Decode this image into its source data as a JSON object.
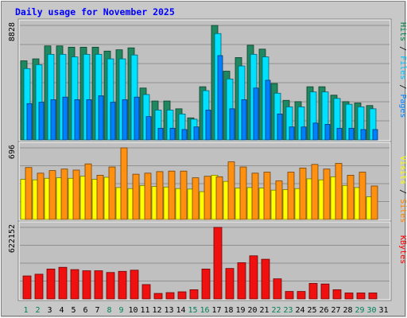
{
  "chart_data": {
    "type": "bar",
    "title": "Daily usage for November 2025",
    "categories": [
      "1",
      "2",
      "3",
      "4",
      "5",
      "6",
      "7",
      "8",
      "9",
      "10",
      "11",
      "12",
      "13",
      "14",
      "15",
      "16",
      "17",
      "18",
      "19",
      "20",
      "21",
      "22",
      "23",
      "24",
      "25",
      "26",
      "27",
      "28",
      "29",
      "30",
      "31"
    ],
    "weekend_days": [
      "1",
      "2",
      "8",
      "9",
      "15",
      "16",
      "22",
      "23",
      "29",
      "30"
    ],
    "panels": [
      {
        "id": "top",
        "max_label": "8828",
        "ylim": [
          0,
          8828
        ],
        "grid": true,
        "legend": [
          {
            "name": "Pages",
            "color": "#0080ff"
          },
          {
            "name": "Files",
            "color": "#00c0ff"
          },
          {
            "name": "Hits",
            "color": "#008040"
          }
        ],
        "series": [
          {
            "name": "Hits",
            "color": "#208860",
            "values": [
              6100,
              6250,
              7250,
              7250,
              7150,
              7150,
              7150,
              6850,
              6950,
              7100,
              4000,
              3000,
              3000,
              2400,
              1700,
              4100,
              8828,
              5300,
              6350,
              7300,
              7000,
              4350,
              3050,
              2950,
              4100,
              4100,
              3450,
              2950,
              2850,
              2650,
              null
            ]
          },
          {
            "name": "Files",
            "color": "#00e0ff",
            "values": [
              5500,
              5800,
              6600,
              6600,
              6400,
              6600,
              6600,
              6250,
              6250,
              6550,
              3500,
              2300,
              2300,
              2000,
              1600,
              3800,
              8200,
              4700,
              5700,
              6600,
              6400,
              3600,
              2550,
              2550,
              3700,
              3700,
              3200,
              2750,
              2550,
              2400,
              null
            ]
          },
          {
            "name": "Pages",
            "color": "#0080ff",
            "values": [
              2800,
              2900,
              3100,
              3300,
              3100,
              3100,
              3400,
              2900,
              3100,
              3300,
              1800,
              900,
              900,
              800,
              1000,
              2300,
              6500,
              2400,
              3100,
              4000,
              4600,
              2000,
              1000,
              1000,
              1300,
              1200,
              900,
              900,
              800,
              800,
              null
            ]
          }
        ]
      },
      {
        "id": "middle",
        "max_label": "696",
        "ylim": [
          0,
          696
        ],
        "grid": true,
        "legend": [
          {
            "name": "Sites",
            "color": "#ff8000"
          },
          {
            "name": "Visits",
            "color": "#ffff00"
          }
        ],
        "series": [
          {
            "name": "Visits",
            "color": "#ffff00",
            "values": [
              390,
              385,
              400,
              405,
              400,
              420,
              390,
              410,
              310,
              300,
              330,
              320,
              315,
              300,
              295,
              270,
              430,
              370,
              305,
              310,
              305,
              285,
              290,
              300,
              395,
              385,
              415,
              330,
              310,
              220,
              null
            ]
          },
          {
            "name": "Sites",
            "color": "#ff9010",
            "values": [
              505,
              450,
              475,
              490,
              480,
              540,
              430,
              510,
              696,
              440,
              450,
              465,
              470,
              470,
              405,
              420,
              415,
              560,
              510,
              450,
              460,
              375,
              460,
              500,
              535,
              490,
              545,
              430,
              460,
              325,
              null
            ]
          }
        ]
      },
      {
        "id": "bottom",
        "max_label": "622152",
        "ylim": [
          0,
          622152
        ],
        "grid": true,
        "legend": [
          {
            "name": "KBytes",
            "color": "#ff0000"
          }
        ],
        "series": [
          {
            "name": "KBytes",
            "color": "#f01010",
            "values": [
              200000,
              215000,
              260000,
              275000,
              255000,
              245000,
              245000,
              230000,
              240000,
              250000,
              125000,
              48000,
              55000,
              62000,
              80000,
              260000,
              622152,
              265000,
              315000,
              375000,
              345000,
              175000,
              65000,
              65000,
              135000,
              130000,
              80000,
              52000,
              52000,
              52000,
              null
            ]
          }
        ]
      }
    ]
  }
}
